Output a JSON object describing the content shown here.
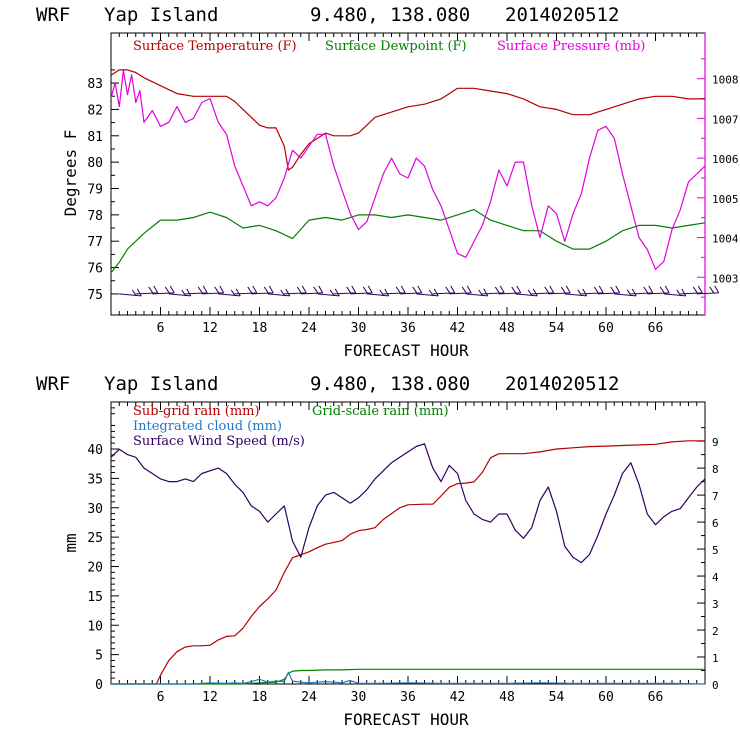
{
  "chart_data": [
    {
      "type": "line",
      "header": {
        "model": "WRF",
        "location": "Yap Island",
        "coords": "9.480, 138.080",
        "init": "2014020512"
      },
      "xlabel": "FORECAST HOUR",
      "ylabel": "Degrees F",
      "xlim": [
        0,
        72
      ],
      "x_ticks": [
        "6",
        "12",
        "18",
        "24",
        "30",
        "36",
        "42",
        "48",
        "54",
        "60",
        "66"
      ],
      "ylim": [
        74.2,
        84.9
      ],
      "y_ticks": [
        "75",
        "76",
        "77",
        "78",
        "79",
        "80",
        "81",
        "82",
        "83"
      ],
      "y2label": "",
      "y2lim": [
        1002.05,
        1009.15
      ],
      "y2_ticks": [
        "1003",
        "1004",
        "1005",
        "1006",
        "1007",
        "1008"
      ],
      "series": [
        {
          "name": "Surface Temperature (F)",
          "color": "#b40000",
          "axis": "left",
          "x": [
            0,
            1,
            2,
            3,
            4,
            6,
            8,
            10,
            12,
            14,
            15,
            16,
            18,
            19,
            20,
            21,
            21.5,
            22,
            23,
            24,
            25,
            26,
            27,
            28,
            29,
            30,
            31,
            32,
            33,
            34,
            36,
            38,
            40,
            41,
            42,
            43,
            44,
            46,
            48,
            50,
            52,
            54,
            56,
            58,
            60,
            62,
            64,
            66,
            68,
            70,
            72
          ],
          "y": [
            83.3,
            83.5,
            83.5,
            83.4,
            83.2,
            82.9,
            82.6,
            82.5,
            82.5,
            82.5,
            82.3,
            82.0,
            81.4,
            81.3,
            81.3,
            80.6,
            79.7,
            79.8,
            80.3,
            80.7,
            80.9,
            81.1,
            81.0,
            81.0,
            81.0,
            81.1,
            81.4,
            81.7,
            81.8,
            81.9,
            82.1,
            82.2,
            82.4,
            82.6,
            82.8,
            82.8,
            82.8,
            82.7,
            82.6,
            82.4,
            82.1,
            82.0,
            81.8,
            81.8,
            82.0,
            82.2,
            82.4,
            82.5,
            82.5,
            82.4,
            82.4
          ]
        },
        {
          "name": "Surface Dewpoint (F)",
          "color": "#008000",
          "axis": "left",
          "x": [
            0,
            1,
            2,
            4,
            6,
            8,
            10,
            12,
            14,
            16,
            18,
            20,
            22,
            24,
            26,
            28,
            30,
            32,
            34,
            36,
            38,
            40,
            42,
            44,
            46,
            48,
            50,
            52,
            54,
            56,
            58,
            60,
            62,
            64,
            66,
            68,
            70,
            72
          ],
          "y": [
            75.8,
            76.2,
            76.7,
            77.3,
            77.8,
            77.8,
            77.9,
            78.1,
            77.9,
            77.5,
            77.6,
            77.4,
            77.1,
            77.8,
            77.9,
            77.8,
            78.0,
            78.0,
            77.9,
            78.0,
            77.9,
            77.8,
            78.0,
            78.2,
            77.8,
            77.6,
            77.4,
            77.4,
            77.0,
            76.7,
            76.7,
            77.0,
            77.4,
            77.6,
            77.6,
            77.5,
            77.6,
            77.7
          ]
        },
        {
          "name": "Surface Pressure (mb)",
          "color": "#e000e0",
          "axis": "right",
          "x": [
            0,
            0.5,
            1,
            1.5,
            2,
            2.5,
            3,
            3.5,
            4,
            5,
            6,
            7,
            8,
            9,
            10,
            11,
            12,
            13,
            14,
            15,
            16,
            17,
            18,
            19,
            20,
            21,
            22,
            23,
            24,
            25,
            26,
            27,
            28,
            29,
            30,
            31,
            32,
            33,
            34,
            35,
            36,
            37,
            38,
            39,
            40,
            41,
            42,
            43,
            44,
            45,
            46,
            47,
            48,
            49,
            50,
            51,
            52,
            53,
            54,
            55,
            56,
            57,
            58,
            59,
            60,
            61,
            62,
            63,
            64,
            65,
            66,
            67,
            68,
            69,
            70,
            71,
            72
          ],
          "y": [
            1007.5,
            1007.9,
            1007.3,
            1008.2,
            1007.6,
            1008.1,
            1007.4,
            1007.7,
            1006.9,
            1007.2,
            1006.8,
            1006.9,
            1007.3,
            1006.9,
            1007.0,
            1007.4,
            1007.5,
            1006.9,
            1006.6,
            1005.8,
            1005.3,
            1004.8,
            1004.9,
            1004.8,
            1005.0,
            1005.5,
            1006.2,
            1006.0,
            1006.3,
            1006.6,
            1006.6,
            1005.8,
            1005.2,
            1004.6,
            1004.2,
            1004.4,
            1005.0,
            1005.6,
            1006.0,
            1005.6,
            1005.5,
            1006.0,
            1005.8,
            1005.2,
            1004.8,
            1004.2,
            1003.6,
            1003.5,
            1003.9,
            1004.3,
            1004.9,
            1005.7,
            1005.3,
            1005.9,
            1005.9,
            1004.8,
            1004.0,
            1004.8,
            1004.6,
            1003.9,
            1004.6,
            1005.1,
            1006.0,
            1006.7,
            1006.8,
            1006.5,
            1005.6,
            1004.8,
            1004.0,
            1003.7,
            1003.2,
            1003.4,
            1004.2,
            1004.7,
            1005.4,
            1005.6,
            1005.8
          ]
        },
        {
          "name": "Surface wind barbs",
          "color": "#300060",
          "axis": "left",
          "kind": "barbs",
          "x": [
            1,
            3,
            5,
            7,
            9,
            11,
            13,
            15,
            17,
            19,
            21,
            23,
            25,
            27,
            29,
            31,
            33,
            35,
            37,
            39,
            41,
            43,
            45,
            47,
            49,
            51,
            53,
            55,
            57,
            59,
            61,
            63,
            65,
            67,
            69,
            71
          ],
          "y": [
            75,
            75,
            75,
            75,
            75,
            75,
            75,
            75,
            75,
            75,
            75,
            75,
            75,
            75,
            75,
            75,
            75,
            75,
            75,
            75,
            75,
            75,
            75,
            75,
            75,
            75,
            75,
            75,
            75,
            75,
            75,
            75,
            75,
            75,
            75,
            75
          ]
        }
      ]
    },
    {
      "type": "line",
      "header": {
        "model": "WRF",
        "location": "Yap Island",
        "coords": "9.480, 138.080",
        "init": "2014020512"
      },
      "xlabel": "FORECAST HOUR",
      "ylabel": "mm",
      "xlim": [
        0,
        72
      ],
      "x_ticks": [
        "6",
        "12",
        "18",
        "24",
        "30",
        "36",
        "42",
        "48",
        "54",
        "60",
        "66"
      ],
      "ylim": [
        0,
        48
      ],
      "y_ticks": [
        "0",
        "5",
        "10",
        "15",
        "20",
        "25",
        "30",
        "35",
        "40"
      ],
      "y2lim": [
        0,
        10.45
      ],
      "y2_ticks": [
        "0",
        "1",
        "2",
        "3",
        "4",
        "5",
        "6",
        "7",
        "8",
        "9"
      ],
      "series": [
        {
          "name": "Sub-grid rain (mm)",
          "color": "#b40000",
          "axis": "left",
          "x": [
            0,
            5.5,
            6,
            7,
            8,
            9,
            10,
            11,
            12,
            13,
            14,
            15,
            16,
            17,
            18,
            19,
            20,
            21,
            22,
            23,
            24,
            25,
            26,
            27,
            28,
            29,
            30,
            31,
            32,
            33,
            34,
            35,
            36,
            38,
            39,
            40,
            41,
            42,
            43,
            44,
            45,
            46,
            47,
            48,
            50,
            52,
            54,
            56,
            58,
            60,
            62,
            64,
            66,
            68,
            70,
            72
          ],
          "y": [
            0,
            0,
            1.5,
            4,
            5.5,
            6.3,
            6.5,
            6.5,
            6.6,
            7.5,
            8.1,
            8.2,
            9.5,
            11.5,
            13.2,
            14.5,
            16,
            19,
            21.5,
            22,
            22.5,
            23.2,
            23.8,
            24.1,
            24.4,
            25.5,
            26.1,
            26.3,
            26.6,
            28,
            29,
            30,
            30.5,
            30.6,
            30.6,
            32,
            33.5,
            34.1,
            34.2,
            34.4,
            36,
            38.5,
            39.2,
            39.2,
            39.2,
            39.5,
            40,
            40.2,
            40.4,
            40.5,
            40.6,
            40.7,
            40.8,
            41.2,
            41.4,
            41.4
          ]
        },
        {
          "name": "Grid-scale rain (mm)",
          "color": "#008000",
          "axis": "left",
          "x": [
            0,
            16,
            18,
            20,
            21,
            21.5,
            22,
            23,
            24,
            26,
            28,
            30,
            32,
            36,
            40,
            44,
            48,
            52,
            56,
            60,
            64,
            68,
            72
          ],
          "y": [
            0,
            0,
            0.2,
            0.3,
            0.8,
            1.8,
            2.2,
            2.3,
            2.3,
            2.4,
            2.4,
            2.5,
            2.5,
            2.5,
            2.5,
            2.5,
            2.5,
            2.5,
            2.5,
            2.5,
            2.5,
            2.5,
            2.5
          ]
        },
        {
          "name": "Integrated cloud (mm)",
          "color": "#1e78c8",
          "axis": "left",
          "x": [
            0,
            10,
            12,
            14,
            15,
            16,
            17,
            18,
            19,
            20,
            21,
            21.5,
            22,
            23,
            24,
            26,
            28,
            29,
            30,
            32,
            36,
            40,
            44,
            48,
            52,
            56,
            60,
            64,
            68,
            72
          ],
          "y": [
            0,
            0,
            0.2,
            0.1,
            0.2,
            0.1,
            0.4,
            0.8,
            0.3,
            0.5,
            0.4,
            2.0,
            0.5,
            0.3,
            0.2,
            0.4,
            0.2,
            0.6,
            0.1,
            0.1,
            0.2,
            0.1,
            0.1,
            0.1,
            0.2,
            0.1,
            0.1,
            0.1,
            0.1,
            0
          ]
        },
        {
          "name": "Surface Wind Speed (m/s)",
          "color": "#300060",
          "axis": "right",
          "x": [
            0,
            1,
            2,
            3,
            4,
            5,
            6,
            7,
            8,
            9,
            10,
            11,
            12,
            13,
            14,
            15,
            16,
            17,
            18,
            19,
            20,
            21,
            22,
            23,
            24,
            25,
            26,
            27,
            28,
            29,
            30,
            31,
            32,
            33,
            34,
            35,
            36,
            37,
            38,
            39,
            40,
            41,
            42,
            43,
            44,
            45,
            46,
            47,
            48,
            49,
            50,
            51,
            52,
            53,
            54,
            55,
            56,
            57,
            58,
            59,
            60,
            61,
            62,
            63,
            64,
            65,
            66,
            67,
            68,
            69,
            70,
            71,
            72
          ],
          "y": [
            8.4,
            8.7,
            8.5,
            8.4,
            8.0,
            7.8,
            7.6,
            7.5,
            7.5,
            7.6,
            7.5,
            7.8,
            7.9,
            8.0,
            7.8,
            7.4,
            7.1,
            6.6,
            6.4,
            6.0,
            6.3,
            6.6,
            5.3,
            4.7,
            5.8,
            6.6,
            7.0,
            7.1,
            6.9,
            6.7,
            6.9,
            7.2,
            7.6,
            7.9,
            8.2,
            8.4,
            8.6,
            8.8,
            8.9,
            8.0,
            7.5,
            8.1,
            7.8,
            6.8,
            6.3,
            6.1,
            6.0,
            6.3,
            6.3,
            5.7,
            5.4,
            5.8,
            6.8,
            7.3,
            6.4,
            5.1,
            4.7,
            4.5,
            4.8,
            5.5,
            6.3,
            7.0,
            7.8,
            8.2,
            7.4,
            6.3,
            5.9,
            6.2,
            6.4,
            6.5,
            6.9,
            7.3,
            7.6
          ]
        }
      ]
    }
  ]
}
